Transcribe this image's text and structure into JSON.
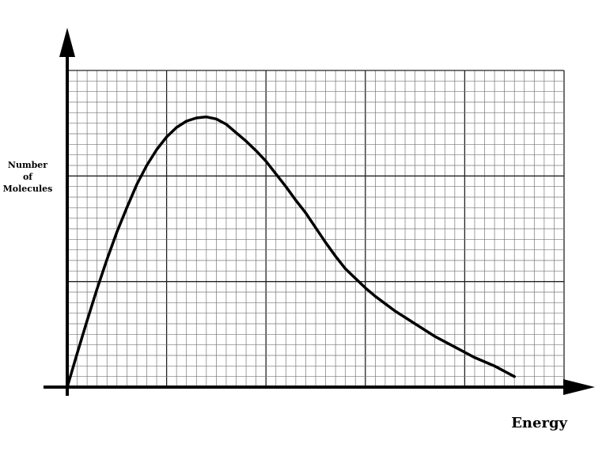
{
  "chart_data": {
    "type": "line",
    "title": "",
    "xlabel": "Energy",
    "ylabel_lines": [
      "Number",
      "of",
      "Molecules"
    ],
    "grid": true,
    "series": [
      {
        "x": [
          0,
          1,
          2,
          3,
          4,
          5,
          6,
          7,
          8,
          9,
          10,
          11,
          12,
          13,
          14,
          15,
          16,
          17,
          18,
          19,
          20,
          21,
          22,
          23,
          24,
          25,
          26,
          27,
          28,
          29,
          30,
          31,
          32,
          33,
          34,
          35,
          36,
          37,
          38,
          39,
          40,
          41,
          42,
          43,
          44,
          45
        ],
        "y": [
          0,
          3.2,
          6.3,
          9.3,
          12.1,
          14.7,
          17.0,
          19.2,
          21.0,
          22.5,
          23.7,
          24.6,
          25.2,
          25.5,
          25.6,
          25.4,
          24.9,
          24.1,
          23.3,
          22.4,
          21.4,
          20.2,
          19.0,
          17.7,
          16.5,
          15.1,
          13.7,
          12.4,
          11.2,
          10.3,
          9.4,
          8.6,
          7.9,
          7.2,
          6.6,
          6.0,
          5.4,
          4.8,
          4.3,
          3.8,
          3.3,
          2.8,
          2.4,
          2.0,
          1.5,
          1.0
        ]
      }
    ],
    "xlim": [
      0,
      50
    ],
    "ylim": [
      0,
      30
    ]
  },
  "colors": {
    "grid": "#777777",
    "axis": "#000000",
    "curve": "#000000"
  }
}
